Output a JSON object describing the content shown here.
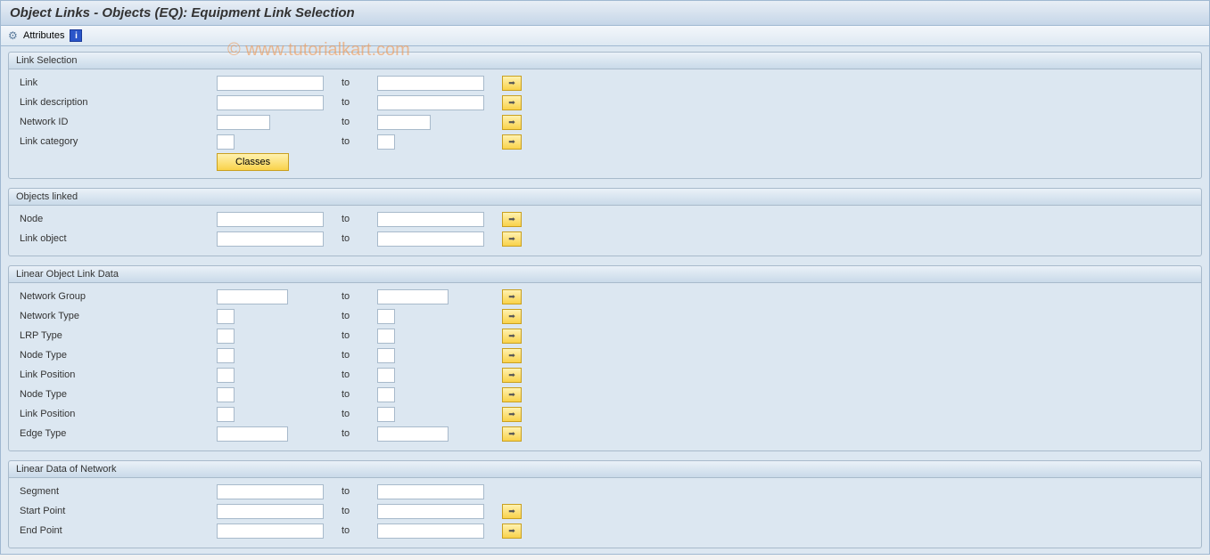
{
  "title": "Object Links - Objects (EQ): Equipment Link Selection",
  "toolbar": {
    "attributes_label": "Attributes",
    "info_label": "i"
  },
  "to_label": "to",
  "watermark": "© www.tutorialkart.com",
  "groups": {
    "link_selection": {
      "title": "Link Selection",
      "link_label": "Link",
      "link_desc_label": "Link description",
      "network_id_label": "Network ID",
      "link_cat_label": "Link category",
      "classes_label": "Classes"
    },
    "objects_linked": {
      "title": "Objects linked",
      "node_label": "Node",
      "link_object_label": "Link object"
    },
    "linear_obj": {
      "title": "Linear Object Link Data",
      "network_group_label": "Network Group",
      "network_type_label": "Network Type",
      "lrp_type_label": "LRP Type",
      "node_type_label": "Node Type",
      "link_position_label": "Link Position",
      "node_type2_label": "Node Type",
      "link_position2_label": "Link Position",
      "edge_type_label": "Edge Type"
    },
    "linear_net": {
      "title": "Linear Data of Network",
      "segment_label": "Segment",
      "start_point_label": "Start Point",
      "end_point_label": "End Point"
    }
  }
}
